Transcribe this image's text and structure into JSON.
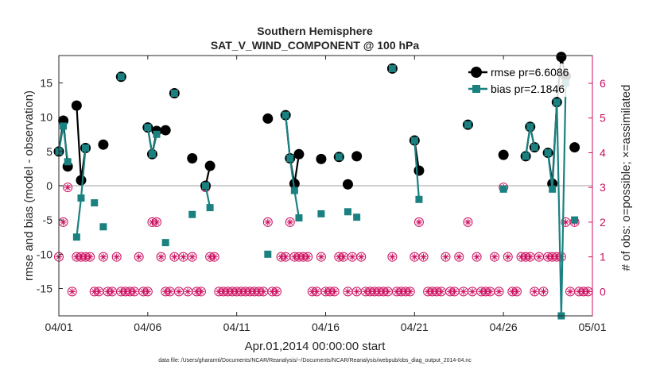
{
  "chart_data": {
    "type": "line",
    "title": "Southern Hemisphere",
    "subtitle": "SAT_V_WIND_COMPONENT @ 100 hPa",
    "xlabel": "Apr.01,2014 00:00:00 start",
    "ylabel": "rmse and bias (model - observation)",
    "y2label": "# of obs: o=possible; ×=assimilated",
    "footnote": "data file: /Users/gharamti/Documents/NCAR/Reanalysis/~/Documents/NCAR/Reanalysis/webpub/obs_diag_output_2014-04.nc",
    "xlim": [
      0,
      30
    ],
    "ylim": [
      -19,
      19
    ],
    "y2lim": [
      -0.7,
      6.8
    ],
    "x_ticks": [
      0,
      5,
      10,
      15,
      20,
      25,
      30
    ],
    "x_tick_labels": [
      "04/01",
      "04/06",
      "04/11",
      "04/16",
      "04/21",
      "04/26",
      "05/01"
    ],
    "y_ticks": [
      -15,
      -10,
      -5,
      0,
      5,
      10,
      15
    ],
    "y_tick_labels": [
      "-15",
      "-10",
      "-5",
      "0",
      "5",
      "10",
      "15"
    ],
    "y2_ticks": [
      0,
      1,
      2,
      3,
      4,
      5,
      6
    ],
    "y2_tick_labels": [
      "0",
      "1",
      "2",
      "3",
      "4",
      "5",
      "6"
    ],
    "colors": {
      "rmse": "#000000",
      "bias": "#1a8080",
      "obs": "#cc1060",
      "zero": "#bdbdbd",
      "axis": "#262626"
    },
    "legend": [
      {
        "label": "rmse pr=6.6086",
        "series": "rmse"
      },
      {
        "label": "bias pr=2.1846",
        "series": "bias"
      }
    ],
    "legend_position": "top-right",
    "rmse_segments": [
      [
        [
          0.0,
          5.0
        ],
        [
          0.25,
          9.5
        ],
        [
          0.5,
          2.8
        ]
      ],
      [
        [
          1.0,
          11.7
        ],
        [
          1.25,
          0.8
        ],
        [
          1.5,
          5.5
        ]
      ],
      [
        [
          2.5,
          6.0
        ]
      ],
      [
        [
          3.5,
          15.9
        ]
      ],
      [
        [
          5.0,
          8.5
        ],
        [
          5.25,
          4.6
        ],
        [
          5.5,
          8.0
        ]
      ],
      [
        [
          6.0,
          8.1
        ]
      ],
      [
        [
          6.5,
          13.5
        ]
      ],
      [
        [
          7.5,
          4.0
        ]
      ],
      [
        [
          8.25,
          0.0
        ],
        [
          8.5,
          2.9
        ]
      ],
      [
        [
          11.75,
          9.8
        ]
      ],
      [
        [
          12.75,
          10.3
        ],
        [
          13.0,
          4.0
        ],
        [
          13.25,
          0.3
        ],
        [
          13.5,
          4.6
        ]
      ],
      [
        [
          14.75,
          3.9
        ]
      ],
      [
        [
          15.75,
          4.2
        ]
      ],
      [
        [
          16.25,
          0.2
        ]
      ],
      [
        [
          16.75,
          4.3
        ]
      ],
      [
        [
          18.75,
          17.1
        ]
      ],
      [
        [
          20.0,
          6.6
        ],
        [
          20.25,
          2.2
        ]
      ],
      [
        [
          23.0,
          8.9
        ]
      ],
      [
        [
          25.0,
          4.5
        ]
      ],
      [
        [
          26.25,
          4.3
        ],
        [
          26.5,
          8.6
        ],
        [
          26.75,
          5.6
        ]
      ],
      [
        [
          27.5,
          4.8
        ],
        [
          27.75,
          0.3
        ],
        [
          28.0,
          12.2
        ],
        [
          28.25,
          18.8
        ],
        [
          28.5,
          16.0
        ]
      ],
      [
        [
          29.0,
          5.6
        ]
      ]
    ],
    "bias_segments": [
      [
        [
          0.0,
          5.0
        ],
        [
          0.25,
          8.7
        ],
        [
          0.5,
          3.5
        ]
      ],
      [
        [
          1.0,
          -7.5
        ],
        [
          1.25,
          -1.8
        ],
        [
          1.5,
          5.5
        ]
      ],
      [
        [
          2.0,
          -2.5
        ]
      ],
      [
        [
          2.5,
          -6.0
        ]
      ],
      [
        [
          3.5,
          15.9
        ]
      ],
      [
        [
          5.0,
          8.5
        ],
        [
          5.25,
          4.6
        ],
        [
          5.5,
          7.5
        ]
      ],
      [
        [
          6.0,
          -8.3
        ]
      ],
      [
        [
          6.5,
          13.5
        ]
      ],
      [
        [
          7.5,
          -4.2
        ]
      ],
      [
        [
          8.25,
          0.0
        ],
        [
          8.5,
          -3.2
        ]
      ],
      [
        [
          11.75,
          -10.0
        ]
      ],
      [
        [
          12.75,
          10.3
        ],
        [
          13.0,
          4.0
        ],
        [
          13.25,
          -0.7
        ],
        [
          13.5,
          -4.7
        ]
      ],
      [
        [
          14.75,
          -4.1
        ]
      ],
      [
        [
          15.75,
          4.2
        ]
      ],
      [
        [
          16.25,
          -3.8
        ]
      ],
      [
        [
          16.75,
          -4.6
        ]
      ],
      [
        [
          18.75,
          17.1
        ]
      ],
      [
        [
          20.0,
          6.6
        ],
        [
          20.25,
          -2.0
        ]
      ],
      [
        [
          23.0,
          8.9
        ]
      ],
      [
        [
          25.0,
          -0.5
        ]
      ],
      [
        [
          26.25,
          4.3
        ],
        [
          26.5,
          8.6
        ],
        [
          26.75,
          5.6
        ]
      ],
      [
        [
          27.5,
          4.8
        ],
        [
          27.75,
          -0.5
        ],
        [
          28.0,
          12.2
        ],
        [
          28.25,
          -19.0
        ],
        [
          28.5,
          15.0
        ]
      ],
      [
        [
          29.0,
          -5.0
        ]
      ]
    ],
    "obs_counts": [
      [
        0.0,
        1
      ],
      [
        0.25,
        2
      ],
      [
        0.5,
        3
      ],
      [
        0.75,
        0
      ],
      [
        1.0,
        1
      ],
      [
        1.25,
        1
      ],
      [
        1.5,
        1
      ],
      [
        1.75,
        1
      ],
      [
        2.0,
        0
      ],
      [
        2.25,
        0
      ],
      [
        2.5,
        1
      ],
      [
        2.75,
        0
      ],
      [
        3.0,
        0
      ],
      [
        3.25,
        1
      ],
      [
        3.5,
        0
      ],
      [
        3.75,
        0
      ],
      [
        4.0,
        0
      ],
      [
        4.25,
        0
      ],
      [
        4.5,
        1
      ],
      [
        4.75,
        0
      ],
      [
        5.0,
        0
      ],
      [
        5.25,
        2
      ],
      [
        5.5,
        2
      ],
      [
        5.75,
        1
      ],
      [
        6.0,
        0
      ],
      [
        6.25,
        0
      ],
      [
        6.5,
        1
      ],
      [
        6.75,
        0
      ],
      [
        7.0,
        1
      ],
      [
        7.25,
        0
      ],
      [
        7.5,
        1
      ],
      [
        7.75,
        0
      ],
      [
        8.0,
        0
      ],
      [
        8.25,
        3
      ],
      [
        8.5,
        1
      ],
      [
        8.75,
        1
      ],
      [
        9.0,
        0
      ],
      [
        9.25,
        0
      ],
      [
        9.5,
        0
      ],
      [
        9.75,
        0
      ],
      [
        10.0,
        0
      ],
      [
        10.25,
        0
      ],
      [
        10.5,
        0
      ],
      [
        10.75,
        0
      ],
      [
        11.0,
        0
      ],
      [
        11.25,
        0
      ],
      [
        11.5,
        0
      ],
      [
        11.75,
        2
      ],
      [
        12.0,
        0
      ],
      [
        12.25,
        0
      ],
      [
        12.5,
        1
      ],
      [
        12.75,
        1
      ],
      [
        13.0,
        2
      ],
      [
        13.25,
        1
      ],
      [
        13.5,
        1
      ],
      [
        13.75,
        1
      ],
      [
        14.0,
        1
      ],
      [
        14.25,
        0
      ],
      [
        14.5,
        0
      ],
      [
        14.75,
        1
      ],
      [
        15.0,
        0
      ],
      [
        15.25,
        0
      ],
      [
        15.5,
        0
      ],
      [
        15.75,
        1
      ],
      [
        16.0,
        1
      ],
      [
        16.25,
        0
      ],
      [
        16.5,
        1
      ],
      [
        16.75,
        0
      ],
      [
        17.0,
        1
      ],
      [
        17.25,
        0
      ],
      [
        17.5,
        0
      ],
      [
        17.75,
        0
      ],
      [
        18.0,
        0
      ],
      [
        18.25,
        0
      ],
      [
        18.5,
        0
      ],
      [
        18.75,
        1
      ],
      [
        19.0,
        0
      ],
      [
        19.25,
        0
      ],
      [
        19.5,
        0
      ],
      [
        19.75,
        0
      ],
      [
        20.0,
        1
      ],
      [
        20.25,
        2
      ],
      [
        20.5,
        1
      ],
      [
        20.75,
        0
      ],
      [
        21.0,
        0
      ],
      [
        21.25,
        0
      ],
      [
        21.5,
        0
      ],
      [
        21.75,
        1
      ],
      [
        22.0,
        0
      ],
      [
        22.25,
        0
      ],
      [
        22.5,
        1
      ],
      [
        22.75,
        0
      ],
      [
        23.0,
        2
      ],
      [
        23.25,
        0
      ],
      [
        23.5,
        1
      ],
      [
        23.75,
        0
      ],
      [
        24.0,
        0
      ],
      [
        24.25,
        0
      ],
      [
        24.5,
        1
      ],
      [
        24.75,
        0
      ],
      [
        25.0,
        3
      ],
      [
        25.25,
        1
      ],
      [
        25.5,
        0
      ],
      [
        25.75,
        0
      ],
      [
        26.0,
        1
      ],
      [
        26.25,
        1
      ],
      [
        26.5,
        1
      ],
      [
        26.75,
        0
      ],
      [
        27.0,
        1
      ],
      [
        27.25,
        0
      ],
      [
        27.5,
        1
      ],
      [
        27.75,
        1
      ],
      [
        28.0,
        1
      ],
      [
        28.25,
        1
      ],
      [
        28.5,
        2
      ],
      [
        28.75,
        0
      ],
      [
        29.0,
        2
      ],
      [
        29.25,
        0
      ],
      [
        29.5,
        0
      ],
      [
        29.75,
        0
      ]
    ],
    "grid": false
  }
}
